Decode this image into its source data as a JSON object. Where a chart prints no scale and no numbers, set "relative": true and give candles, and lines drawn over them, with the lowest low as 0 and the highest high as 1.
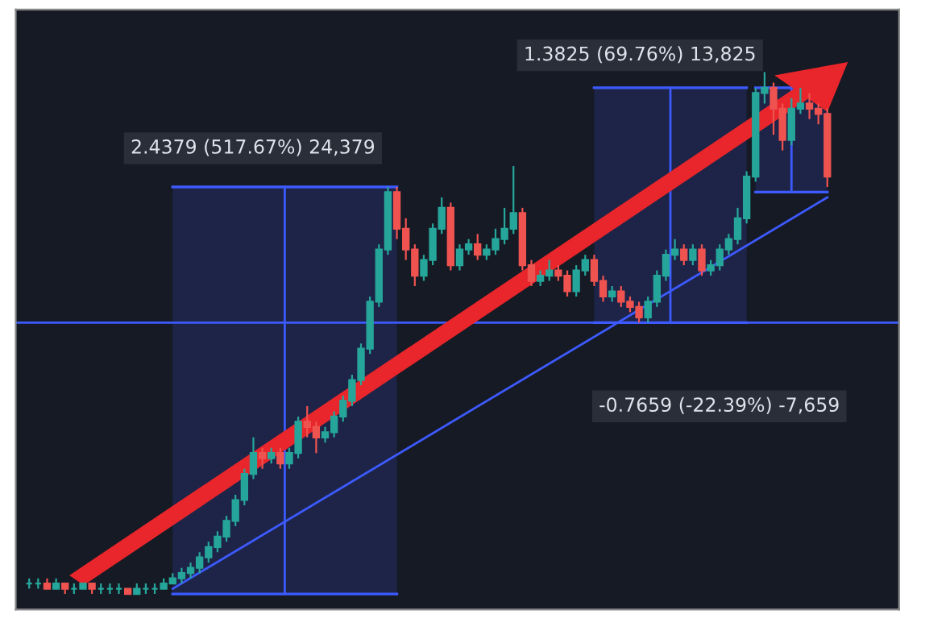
{
  "chart_data": {
    "type": "candlestick",
    "relative": true,
    "tick_labels": false,
    "categories": [
      null,
      null,
      null,
      null,
      null,
      null,
      null,
      null,
      null,
      null,
      null,
      null,
      null,
      null,
      null,
      null,
      null,
      null,
      null,
      null,
      null,
      null,
      null,
      null,
      null,
      null,
      null,
      null,
      null,
      null,
      null,
      null,
      null,
      null,
      null,
      null,
      null,
      null,
      null,
      null,
      null,
      null,
      null,
      null,
      null,
      null,
      null,
      null,
      null,
      null,
      null,
      null,
      null,
      null,
      null,
      null,
      null,
      null,
      null,
      null,
      null,
      null,
      null,
      null,
      null,
      null,
      null,
      null,
      null,
      null,
      null,
      null,
      null,
      null,
      null,
      null,
      null,
      null,
      null,
      null,
      null,
      null,
      null,
      null,
      null,
      null,
      null,
      null,
      null,
      null
    ],
    "ohlc": [
      [
        0.02,
        0.03,
        0.01,
        0.02
      ],
      [
        0.02,
        0.03,
        0.01,
        0.02
      ],
      [
        0.02,
        0.03,
        0.01,
        0.01
      ],
      [
        0.01,
        0.03,
        0.01,
        0.02
      ],
      [
        0.02,
        0.02,
        0.0,
        0.01
      ],
      [
        0.01,
        0.02,
        0.0,
        0.01
      ],
      [
        0.01,
        0.02,
        0.01,
        0.02
      ],
      [
        0.02,
        0.02,
        0.0,
        0.01
      ],
      [
        0.01,
        0.02,
        0.0,
        0.01
      ],
      [
        0.01,
        0.02,
        0.0,
        0.01
      ],
      [
        0.01,
        0.02,
        0.0,
        0.01
      ],
      [
        0.01,
        0.01,
        0.0,
        0.0
      ],
      [
        0.0,
        0.02,
        0.0,
        0.01
      ],
      [
        0.01,
        0.02,
        0.0,
        0.01
      ],
      [
        0.01,
        0.02,
        0.0,
        0.01
      ],
      [
        0.01,
        0.03,
        0.01,
        0.02
      ],
      [
        0.02,
        0.04,
        0.02,
        0.03
      ],
      [
        0.03,
        0.05,
        0.02,
        0.04
      ],
      [
        0.04,
        0.06,
        0.03,
        0.05
      ],
      [
        0.05,
        0.08,
        0.04,
        0.07
      ],
      [
        0.07,
        0.1,
        0.06,
        0.09
      ],
      [
        0.09,
        0.12,
        0.08,
        0.11
      ],
      [
        0.11,
        0.15,
        0.1,
        0.14
      ],
      [
        0.14,
        0.19,
        0.13,
        0.18
      ],
      [
        0.18,
        0.24,
        0.17,
        0.23
      ],
      [
        0.23,
        0.3,
        0.22,
        0.27
      ],
      [
        0.27,
        0.28,
        0.24,
        0.26
      ],
      [
        0.26,
        0.28,
        0.25,
        0.27
      ],
      [
        0.27,
        0.28,
        0.24,
        0.25
      ],
      [
        0.25,
        0.28,
        0.24,
        0.27
      ],
      [
        0.27,
        0.34,
        0.26,
        0.33
      ],
      [
        0.33,
        0.36,
        0.3,
        0.32
      ],
      [
        0.32,
        0.33,
        0.27,
        0.3
      ],
      [
        0.3,
        0.32,
        0.29,
        0.31
      ],
      [
        0.31,
        0.35,
        0.3,
        0.34
      ],
      [
        0.34,
        0.38,
        0.33,
        0.37
      ],
      [
        0.37,
        0.42,
        0.36,
        0.41
      ],
      [
        0.41,
        0.48,
        0.4,
        0.47
      ],
      [
        0.47,
        0.57,
        0.46,
        0.56
      ],
      [
        0.56,
        0.67,
        0.55,
        0.66
      ],
      [
        0.66,
        0.78,
        0.65,
        0.77
      ],
      [
        0.77,
        0.78,
        0.68,
        0.7
      ],
      [
        0.7,
        0.72,
        0.64,
        0.66
      ],
      [
        0.66,
        0.67,
        0.59,
        0.61
      ],
      [
        0.61,
        0.65,
        0.6,
        0.64
      ],
      [
        0.64,
        0.71,
        0.63,
        0.7
      ],
      [
        0.7,
        0.76,
        0.69,
        0.74
      ],
      [
        0.74,
        0.75,
        0.62,
        0.63
      ],
      [
        0.63,
        0.67,
        0.62,
        0.66
      ],
      [
        0.66,
        0.68,
        0.65,
        0.67
      ],
      [
        0.67,
        0.69,
        0.64,
        0.65
      ],
      [
        0.65,
        0.67,
        0.64,
        0.66
      ],
      [
        0.66,
        0.7,
        0.65,
        0.68
      ],
      [
        0.68,
        0.74,
        0.67,
        0.7
      ],
      [
        0.7,
        0.82,
        0.69,
        0.73
      ],
      [
        0.73,
        0.74,
        0.62,
        0.63
      ],
      [
        0.63,
        0.64,
        0.59,
        0.6
      ],
      [
        0.6,
        0.62,
        0.59,
        0.61
      ],
      [
        0.61,
        0.64,
        0.6,
        0.62
      ],
      [
        0.62,
        0.63,
        0.6,
        0.61
      ],
      [
        0.61,
        0.62,
        0.57,
        0.58
      ],
      [
        0.58,
        0.63,
        0.57,
        0.62
      ],
      [
        0.62,
        0.65,
        0.61,
        0.64
      ],
      [
        0.64,
        0.65,
        0.59,
        0.6
      ],
      [
        0.6,
        0.61,
        0.56,
        0.57
      ],
      [
        0.57,
        0.59,
        0.56,
        0.58
      ],
      [
        0.58,
        0.59,
        0.55,
        0.56
      ],
      [
        0.56,
        0.57,
        0.54,
        0.55
      ],
      [
        0.55,
        0.56,
        0.52,
        0.53
      ],
      [
        0.53,
        0.57,
        0.52,
        0.56
      ],
      [
        0.56,
        0.62,
        0.55,
        0.61
      ],
      [
        0.61,
        0.66,
        0.6,
        0.65
      ],
      [
        0.65,
        0.68,
        0.64,
        0.66
      ],
      [
        0.66,
        0.67,
        0.63,
        0.64
      ],
      [
        0.64,
        0.67,
        0.63,
        0.66
      ],
      [
        0.66,
        0.67,
        0.61,
        0.62
      ],
      [
        0.62,
        0.64,
        0.61,
        0.63
      ],
      [
        0.63,
        0.67,
        0.62,
        0.66
      ],
      [
        0.66,
        0.69,
        0.65,
        0.68
      ],
      [
        0.68,
        0.74,
        0.67,
        0.72
      ],
      [
        0.72,
        0.81,
        0.71,
        0.8
      ],
      [
        0.8,
        0.97,
        0.79,
        0.96
      ],
      [
        0.96,
        1.0,
        0.94,
        0.97
      ],
      [
        0.97,
        0.98,
        0.88,
        0.93
      ],
      [
        0.93,
        0.94,
        0.85,
        0.87
      ],
      [
        0.87,
        0.95,
        0.86,
        0.93
      ],
      [
        0.93,
        0.97,
        0.92,
        0.94
      ],
      [
        0.94,
        0.96,
        0.91,
        0.93
      ],
      [
        0.93,
        0.94,
        0.9,
        0.92
      ],
      [
        0.92,
        0.93,
        0.78,
        0.8
      ]
    ],
    "series": [
      {
        "type": "line",
        "color": "#3d5afe",
        "values": [
          null,
          null,
          null,
          null,
          null,
          null,
          null,
          null,
          null,
          null,
          null,
          null,
          null,
          null,
          null,
          null,
          0.01,
          null,
          null,
          null,
          null,
          null,
          null,
          null,
          null,
          null,
          null,
          null,
          null,
          null,
          null,
          null,
          null,
          null,
          null,
          null,
          null,
          null,
          null,
          null,
          null,
          null,
          null,
          null,
          null,
          null,
          null,
          null,
          null,
          null,
          null,
          null,
          null,
          null,
          null,
          null,
          null,
          null,
          null,
          null,
          null,
          null,
          null,
          null,
          null,
          null,
          null,
          null,
          null,
          null,
          null,
          null,
          null,
          null,
          null,
          null,
          null,
          null,
          null,
          null,
          null,
          null,
          null,
          null,
          null,
          null,
          null,
          null,
          null,
          0.76
        ]
      }
    ],
    "ref_lines": [
      {
        "axis": "y",
        "value": 0.52,
        "color": "#3d5afe"
      }
    ],
    "annotations": [
      "2.4379 (517.67%) 24,379",
      "1.3825 (69.76%) 13,825",
      "-0.7659 (-22.39%) -7,659"
    ]
  }
}
